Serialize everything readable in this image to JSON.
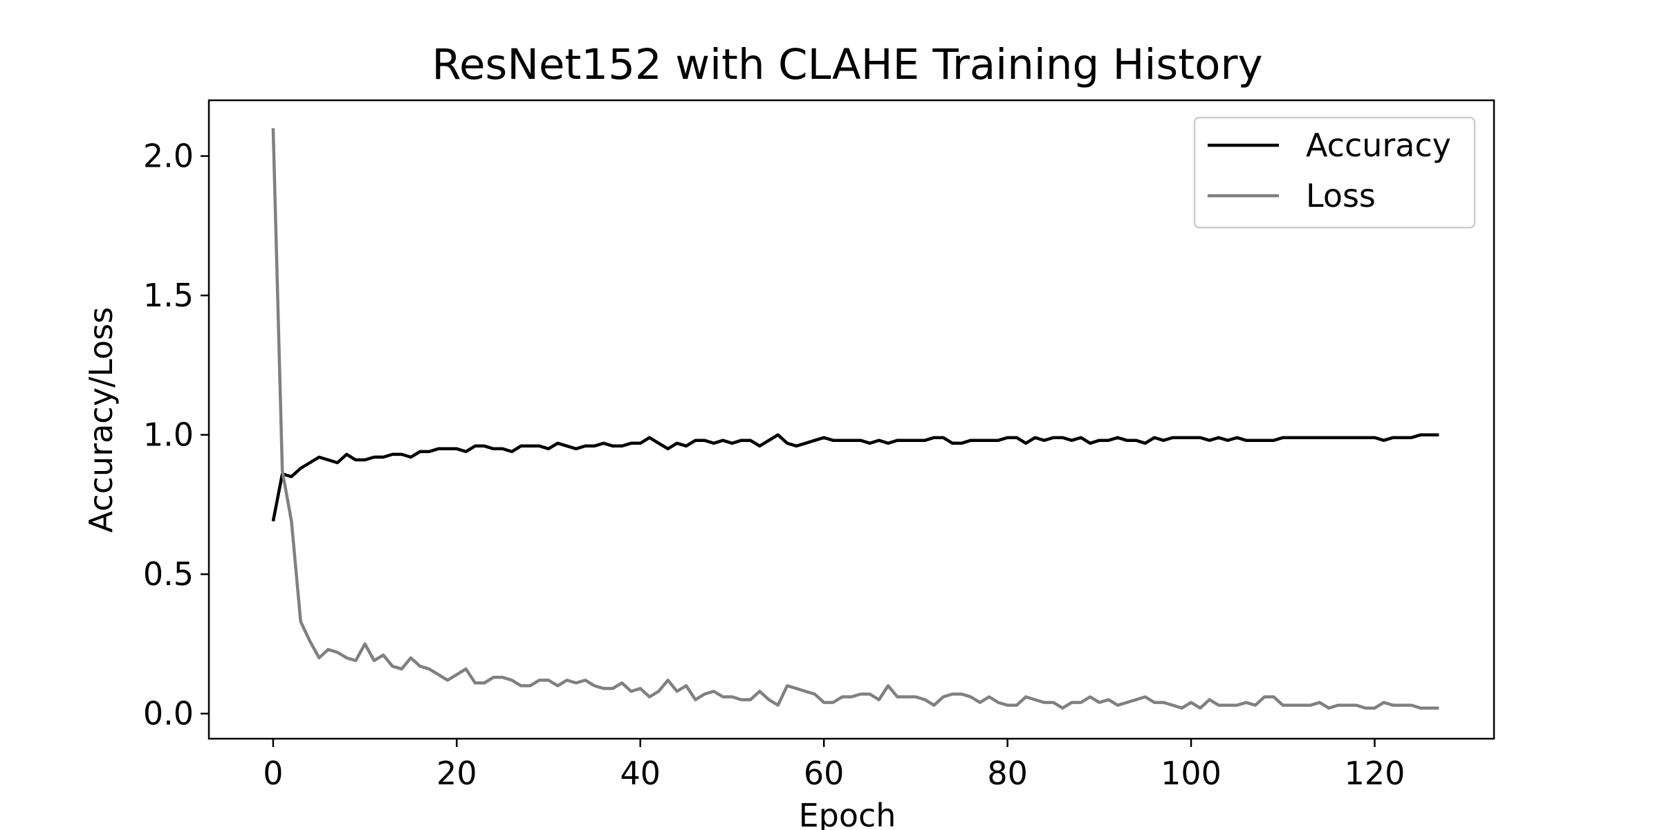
{
  "chart_data": {
    "type": "line",
    "title": "ResNet152 with CLAHE Training History",
    "xlabel": "Epoch",
    "ylabel": "Accuracy/Loss",
    "xlim": [
      -7,
      133
    ],
    "ylim": [
      -0.09,
      2.2
    ],
    "xticks": [
      0,
      20,
      40,
      60,
      80,
      100,
      120
    ],
    "xtick_labels": [
      "0",
      "20",
      "40",
      "60",
      "80",
      "100",
      "120"
    ],
    "yticks": [
      0.0,
      0.5,
      1.0,
      1.5,
      2.0
    ],
    "ytick_labels": [
      "0.0",
      "0.5",
      "1.0",
      "1.5",
      "2.0"
    ],
    "grid": false,
    "legend_position": "top-right",
    "series": [
      {
        "name": "Accuracy",
        "color": "#000000",
        "values": [
          0.69,
          0.86,
          0.85,
          0.88,
          0.9,
          0.92,
          0.91,
          0.9,
          0.93,
          0.91,
          0.91,
          0.92,
          0.92,
          0.93,
          0.93,
          0.92,
          0.94,
          0.94,
          0.95,
          0.95,
          0.95,
          0.94,
          0.96,
          0.96,
          0.95,
          0.95,
          0.94,
          0.96,
          0.96,
          0.96,
          0.95,
          0.97,
          0.96,
          0.95,
          0.96,
          0.96,
          0.97,
          0.96,
          0.96,
          0.97,
          0.97,
          0.99,
          0.97,
          0.95,
          0.97,
          0.96,
          0.98,
          0.98,
          0.97,
          0.98,
          0.97,
          0.98,
          0.98,
          0.96,
          0.98,
          1.0,
          0.97,
          0.96,
          0.97,
          0.98,
          0.99,
          0.98,
          0.98,
          0.98,
          0.98,
          0.97,
          0.98,
          0.97,
          0.98,
          0.98,
          0.98,
          0.98,
          0.99,
          0.99,
          0.97,
          0.97,
          0.98,
          0.98,
          0.98,
          0.98,
          0.99,
          0.99,
          0.97,
          0.99,
          0.98,
          0.99,
          0.99,
          0.98,
          0.99,
          0.97,
          0.98,
          0.98,
          0.99,
          0.98,
          0.98,
          0.97,
          0.99,
          0.98,
          0.99,
          0.99,
          0.99,
          0.99,
          0.98,
          0.99,
          0.98,
          0.99,
          0.98,
          0.98,
          0.98,
          0.98,
          0.99,
          0.99,
          0.99,
          0.99,
          0.99,
          0.99,
          0.99,
          0.99,
          0.99,
          0.99,
          0.99,
          0.98,
          0.99,
          0.99,
          0.99,
          1.0,
          1.0,
          1.0
        ]
      },
      {
        "name": "Loss",
        "color": "#808080",
        "values": [
          2.1,
          0.87,
          0.69,
          0.33,
          0.26,
          0.2,
          0.23,
          0.22,
          0.2,
          0.19,
          0.25,
          0.19,
          0.21,
          0.17,
          0.16,
          0.2,
          0.17,
          0.16,
          0.14,
          0.12,
          0.14,
          0.16,
          0.11,
          0.11,
          0.13,
          0.13,
          0.12,
          0.1,
          0.1,
          0.12,
          0.12,
          0.1,
          0.12,
          0.11,
          0.12,
          0.1,
          0.09,
          0.09,
          0.11,
          0.08,
          0.09,
          0.06,
          0.08,
          0.12,
          0.08,
          0.1,
          0.05,
          0.07,
          0.08,
          0.06,
          0.06,
          0.05,
          0.05,
          0.08,
          0.05,
          0.03,
          0.1,
          0.09,
          0.08,
          0.07,
          0.04,
          0.04,
          0.06,
          0.06,
          0.07,
          0.07,
          0.05,
          0.1,
          0.06,
          0.06,
          0.06,
          0.05,
          0.03,
          0.06,
          0.07,
          0.07,
          0.06,
          0.04,
          0.06,
          0.04,
          0.03,
          0.03,
          0.06,
          0.05,
          0.04,
          0.04,
          0.02,
          0.04,
          0.04,
          0.06,
          0.04,
          0.05,
          0.03,
          0.04,
          0.05,
          0.06,
          0.04,
          0.04,
          0.03,
          0.02,
          0.04,
          0.02,
          0.05,
          0.03,
          0.03,
          0.03,
          0.04,
          0.03,
          0.06,
          0.06,
          0.03,
          0.03,
          0.03,
          0.03,
          0.04,
          0.02,
          0.03,
          0.03,
          0.03,
          0.02,
          0.02,
          0.04,
          0.03,
          0.03,
          0.03,
          0.02,
          0.02,
          0.02
        ]
      }
    ]
  }
}
